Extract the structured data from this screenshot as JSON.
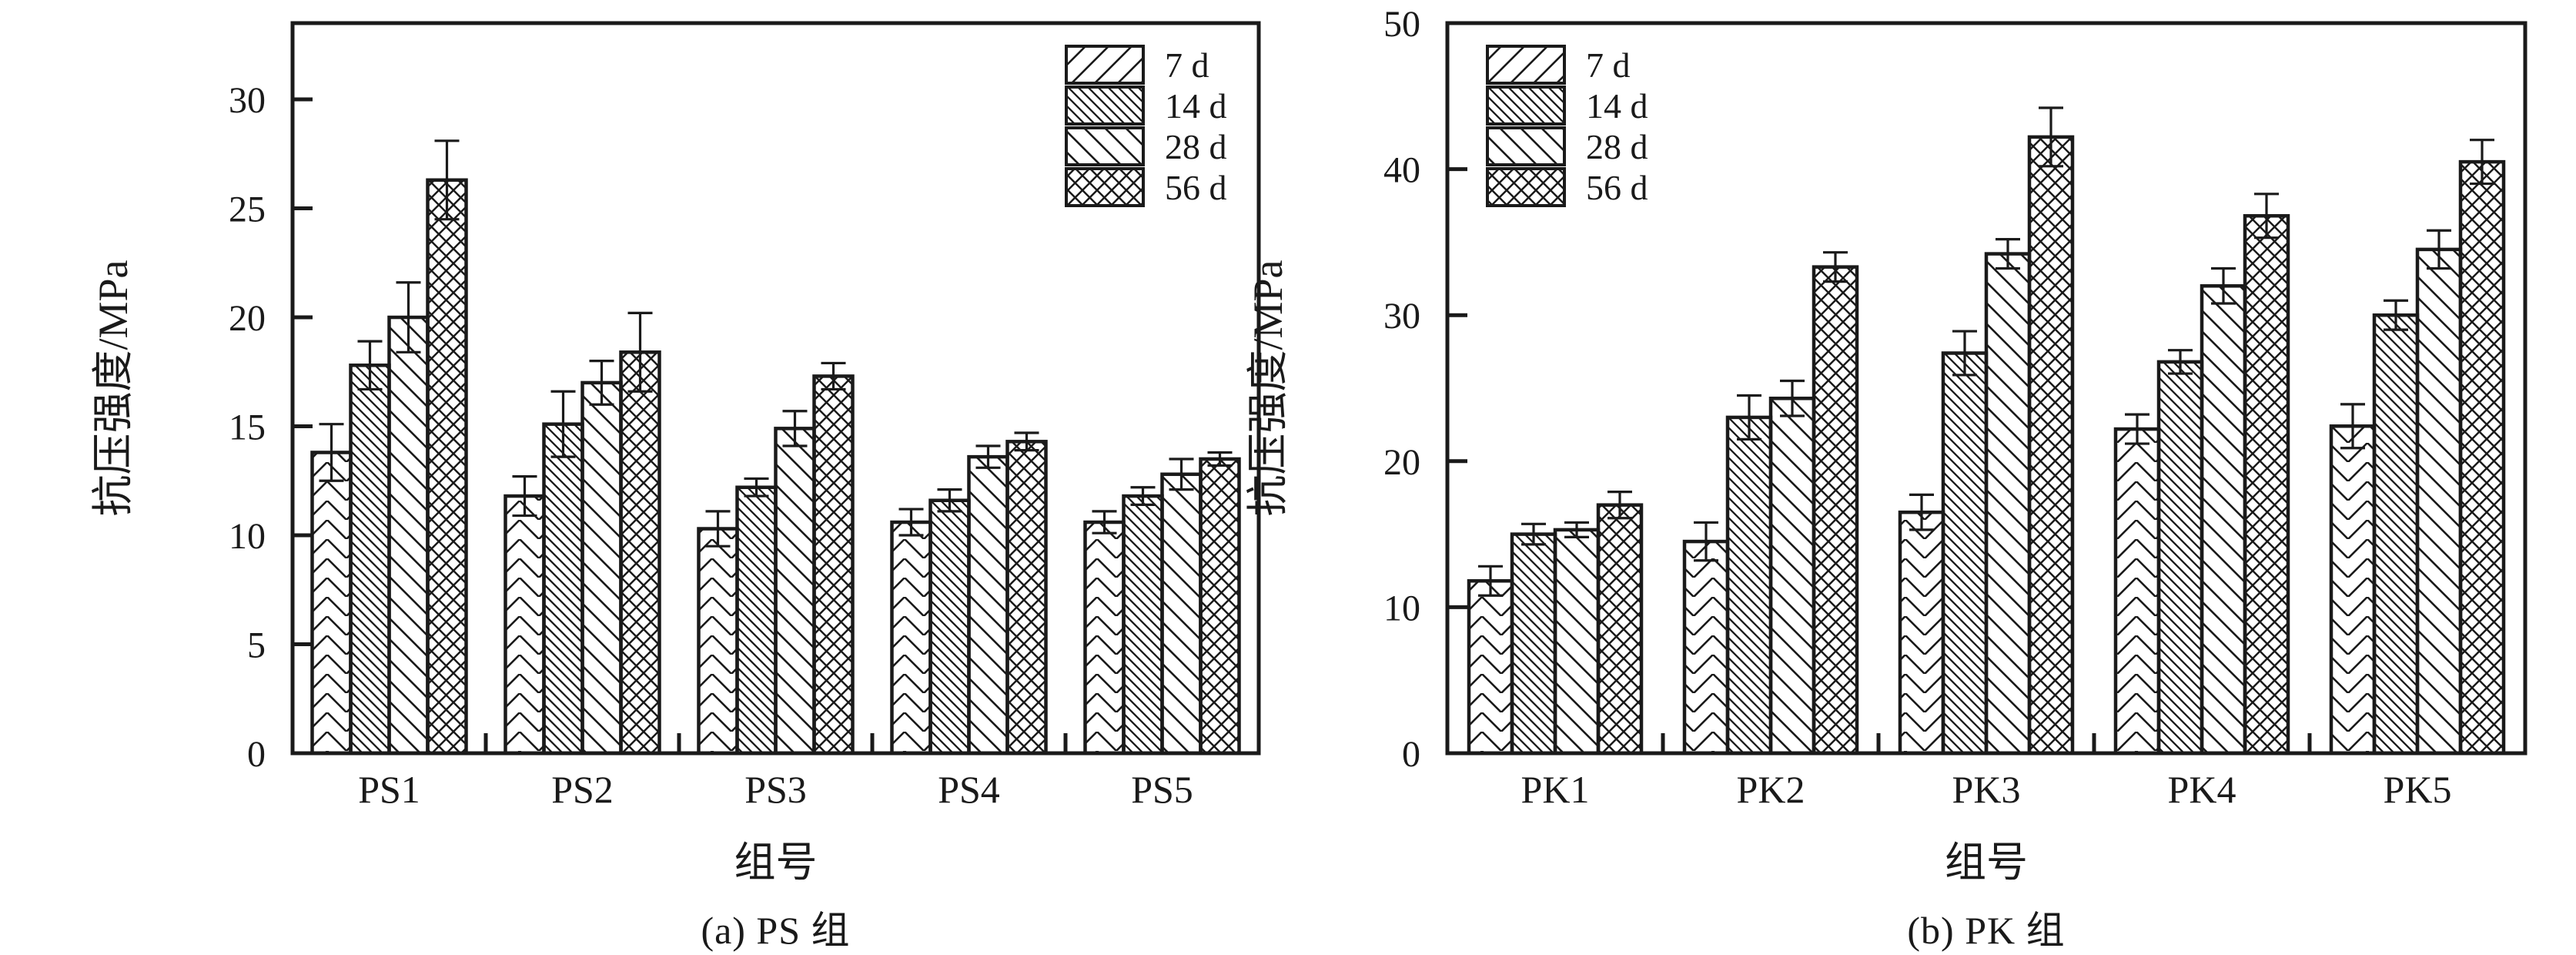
{
  "colors": {
    "ink": "#1a1a1a",
    "background": "#ffffff"
  },
  "chart_data": [
    {
      "type": "bar",
      "panel": "a",
      "panel_caption": "(a) PS 组",
      "xlabel": "组号",
      "ylabel": "抗压强度/MPa",
      "ylim": [
        0,
        33.5
      ],
      "yticks": [
        0,
        5,
        10,
        15,
        20,
        25,
        30
      ],
      "grid": false,
      "legend_position": "top-right",
      "categories": [
        "PS1",
        "PS2",
        "PS3",
        "PS4",
        "PS5"
      ],
      "series": [
        {
          "name": "7 d",
          "hatch": "herringbone",
          "values": [
            13.8,
            11.8,
            10.3,
            10.6,
            10.6
          ],
          "errors": [
            1.3,
            0.9,
            0.8,
            0.6,
            0.5
          ]
        },
        {
          "name": "14 d",
          "hatch": "backslash-dense",
          "values": [
            17.8,
            15.1,
            12.2,
            11.6,
            11.8
          ],
          "errors": [
            1.1,
            1.5,
            0.4,
            0.5,
            0.4
          ]
        },
        {
          "name": "28 d",
          "hatch": "backslash",
          "values": [
            20.0,
            17.0,
            14.9,
            13.6,
            12.8
          ],
          "errors": [
            1.6,
            1.0,
            0.8,
            0.5,
            0.7
          ]
        },
        {
          "name": "56 d",
          "hatch": "diamond",
          "values": [
            26.3,
            18.4,
            17.3,
            14.3,
            13.5
          ],
          "errors": [
            1.8,
            1.8,
            0.6,
            0.4,
            0.3
          ]
        }
      ]
    },
    {
      "type": "bar",
      "panel": "b",
      "panel_caption": "(b) PK 组",
      "xlabel": "组号",
      "ylabel": "抗压强度/MPa",
      "ylim": [
        0,
        50
      ],
      "yticks": [
        0,
        10,
        20,
        30,
        40,
        50
      ],
      "grid": false,
      "legend_position": "top-left",
      "categories": [
        "PK1",
        "PK2",
        "PK3",
        "PK4",
        "PK5"
      ],
      "series": [
        {
          "name": "7 d",
          "hatch": "herringbone",
          "values": [
            11.8,
            14.5,
            16.5,
            22.2,
            22.4
          ],
          "errors": [
            1.0,
            1.3,
            1.2,
            1.0,
            1.5
          ]
        },
        {
          "name": "14 d",
          "hatch": "backslash-dense",
          "values": [
            15.0,
            23.0,
            27.4,
            26.8,
            30.0
          ],
          "errors": [
            0.7,
            1.5,
            1.5,
            0.8,
            1.0
          ]
        },
        {
          "name": "28 d",
          "hatch": "backslash",
          "values": [
            15.3,
            24.3,
            34.2,
            32.0,
            34.5
          ],
          "errors": [
            0.5,
            1.2,
            1.0,
            1.2,
            1.3
          ]
        },
        {
          "name": "56 d",
          "hatch": "diamond",
          "values": [
            17.0,
            33.3,
            42.2,
            36.8,
            40.5
          ],
          "errors": [
            0.9,
            1.0,
            2.0,
            1.5,
            1.5
          ]
        }
      ]
    }
  ]
}
